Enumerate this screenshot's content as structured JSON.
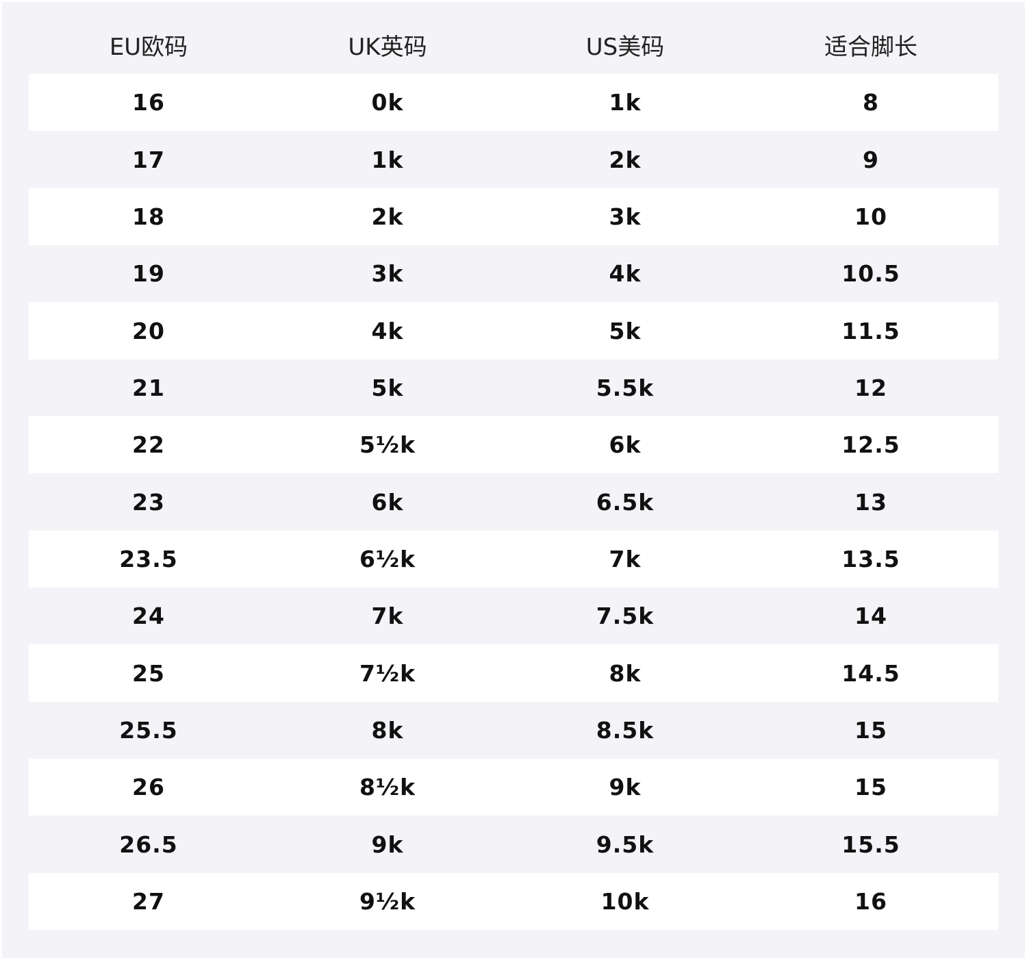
{
  "table": {
    "header": [
      "EU欧码",
      "UK英码",
      "US美码",
      "适合脚长"
    ],
    "rows": [
      [
        "16",
        "0k",
        "1k",
        "8"
      ],
      [
        "17",
        "1k",
        "2k",
        "9"
      ],
      [
        "18",
        "2k",
        "3k",
        "10"
      ],
      [
        "19",
        "3k",
        "4k",
        "10.5"
      ],
      [
        "20",
        "4k",
        "5k",
        "11.5"
      ],
      [
        "21",
        "5k",
        "5.5k",
        "12"
      ],
      [
        "22",
        "5½k",
        "6k",
        "12.5"
      ],
      [
        "23",
        "6k",
        "6.5k",
        "13"
      ],
      [
        "23.5",
        "6½k",
        "7k",
        "13.5"
      ],
      [
        "24",
        "7k",
        "7.5k",
        "14"
      ],
      [
        "25",
        "7½k",
        "8k",
        "14.5"
      ],
      [
        "25.5",
        "8k",
        "8.5k",
        "15"
      ],
      [
        "26",
        "8½k",
        "9k",
        "15"
      ],
      [
        "26.5",
        "9k",
        "9.5k",
        "15.5"
      ],
      [
        "27",
        "9½k",
        "10k",
        "16"
      ]
    ]
  }
}
